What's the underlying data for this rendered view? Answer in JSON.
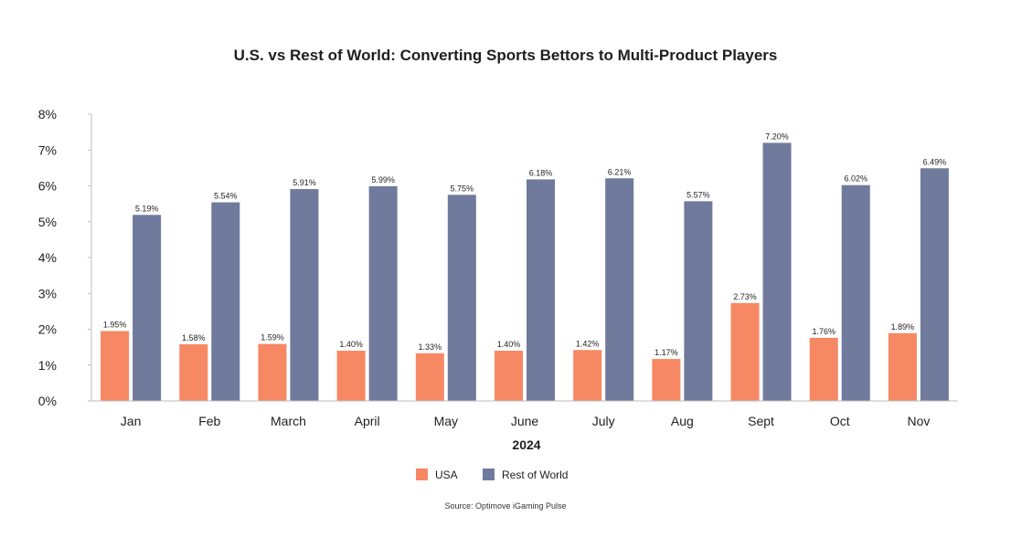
{
  "chart_data": {
    "type": "bar",
    "title": "U.S. vs Rest of World: Converting Sports Bettors to Multi-Product Players",
    "xlabel": "2024",
    "ylabel": "",
    "ylim": [
      0,
      8
    ],
    "y_ticks": [
      "0%",
      "1%",
      "2%",
      "3%",
      "4%",
      "5%",
      "6%",
      "7%",
      "8%"
    ],
    "categories": [
      "Jan",
      "Feb",
      "March",
      "April",
      "May",
      "June",
      "July",
      "Aug",
      "Sept",
      "Oct",
      "Nov"
    ],
    "series": [
      {
        "name": "USA",
        "color": "#F68863",
        "values": [
          1.95,
          1.58,
          1.59,
          1.4,
          1.33,
          1.4,
          1.42,
          1.17,
          2.73,
          1.76,
          1.89
        ],
        "labels": [
          "1.95%",
          "1.58%",
          "1.59%",
          "1.40%",
          "1.33%",
          "1.40%",
          "1.42%",
          "1.17%",
          "2.73%",
          "1.76%",
          "1.89%"
        ]
      },
      {
        "name": "Rest of World",
        "color": "#6F7A9D",
        "values": [
          5.19,
          5.54,
          5.91,
          5.99,
          5.75,
          6.18,
          6.21,
          5.57,
          7.2,
          6.02,
          6.49
        ],
        "labels": [
          "5.19%",
          "5.54%",
          "5.91%",
          "5.99%",
          "5.75%",
          "6.18%",
          "6.21%",
          "5.57%",
          "7.20%",
          "6.02%",
          "6.49%"
        ]
      }
    ],
    "legend_position": "bottom-center",
    "grid": false,
    "source": "Source: Optimove iGaming Pulse"
  }
}
